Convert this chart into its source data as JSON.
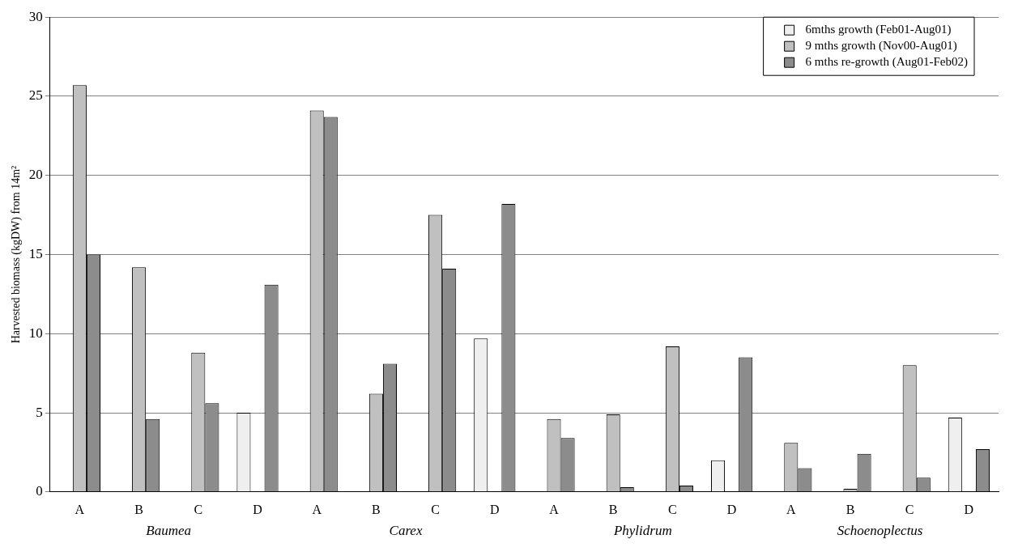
{
  "chart_data": {
    "type": "bar",
    "ylabel": "Harvested biomass (kgDW) from 14m²",
    "categories": [
      "A",
      "B",
      "C",
      "D",
      "A",
      "B",
      "C",
      "D",
      "A",
      "B",
      "C",
      "D",
      "A",
      "B",
      "C",
      "D"
    ],
    "series": [
      {
        "name": "6mths growth (Feb01-Aug01)",
        "color": "#efefef",
        "values": [
          null,
          null,
          null,
          5.0,
          null,
          null,
          null,
          9.7,
          null,
          null,
          null,
          2.0,
          null,
          null,
          null,
          4.7
        ]
      },
      {
        "name": "9 mths growth (Nov00-Aug01)",
        "color": "#c0c0c0",
        "values": [
          25.7,
          14.2,
          8.8,
          null,
          24.1,
          6.2,
          17.5,
          null,
          4.6,
          4.9,
          9.2,
          null,
          3.1,
          0.2,
          8.0,
          null
        ]
      },
      {
        "name": "6 mths re-growth (Aug01-Feb02)",
        "color": "#8c8c8c",
        "values": [
          15.0,
          4.6,
          5.6,
          13.1,
          23.7,
          8.1,
          14.1,
          18.2,
          3.4,
          0.3,
          0.4,
          8.5,
          1.5,
          2.4,
          0.9,
          2.7
        ]
      }
    ],
    "ylim": [
      0,
      30
    ],
    "yticks": [
      0,
      5,
      10,
      15,
      20,
      25,
      30
    ],
    "grid": "y",
    "legend": "top right",
    "annotations": [
      "Baumea",
      "Carex",
      "Phylidrum",
      "Schoenoplectus"
    ]
  }
}
